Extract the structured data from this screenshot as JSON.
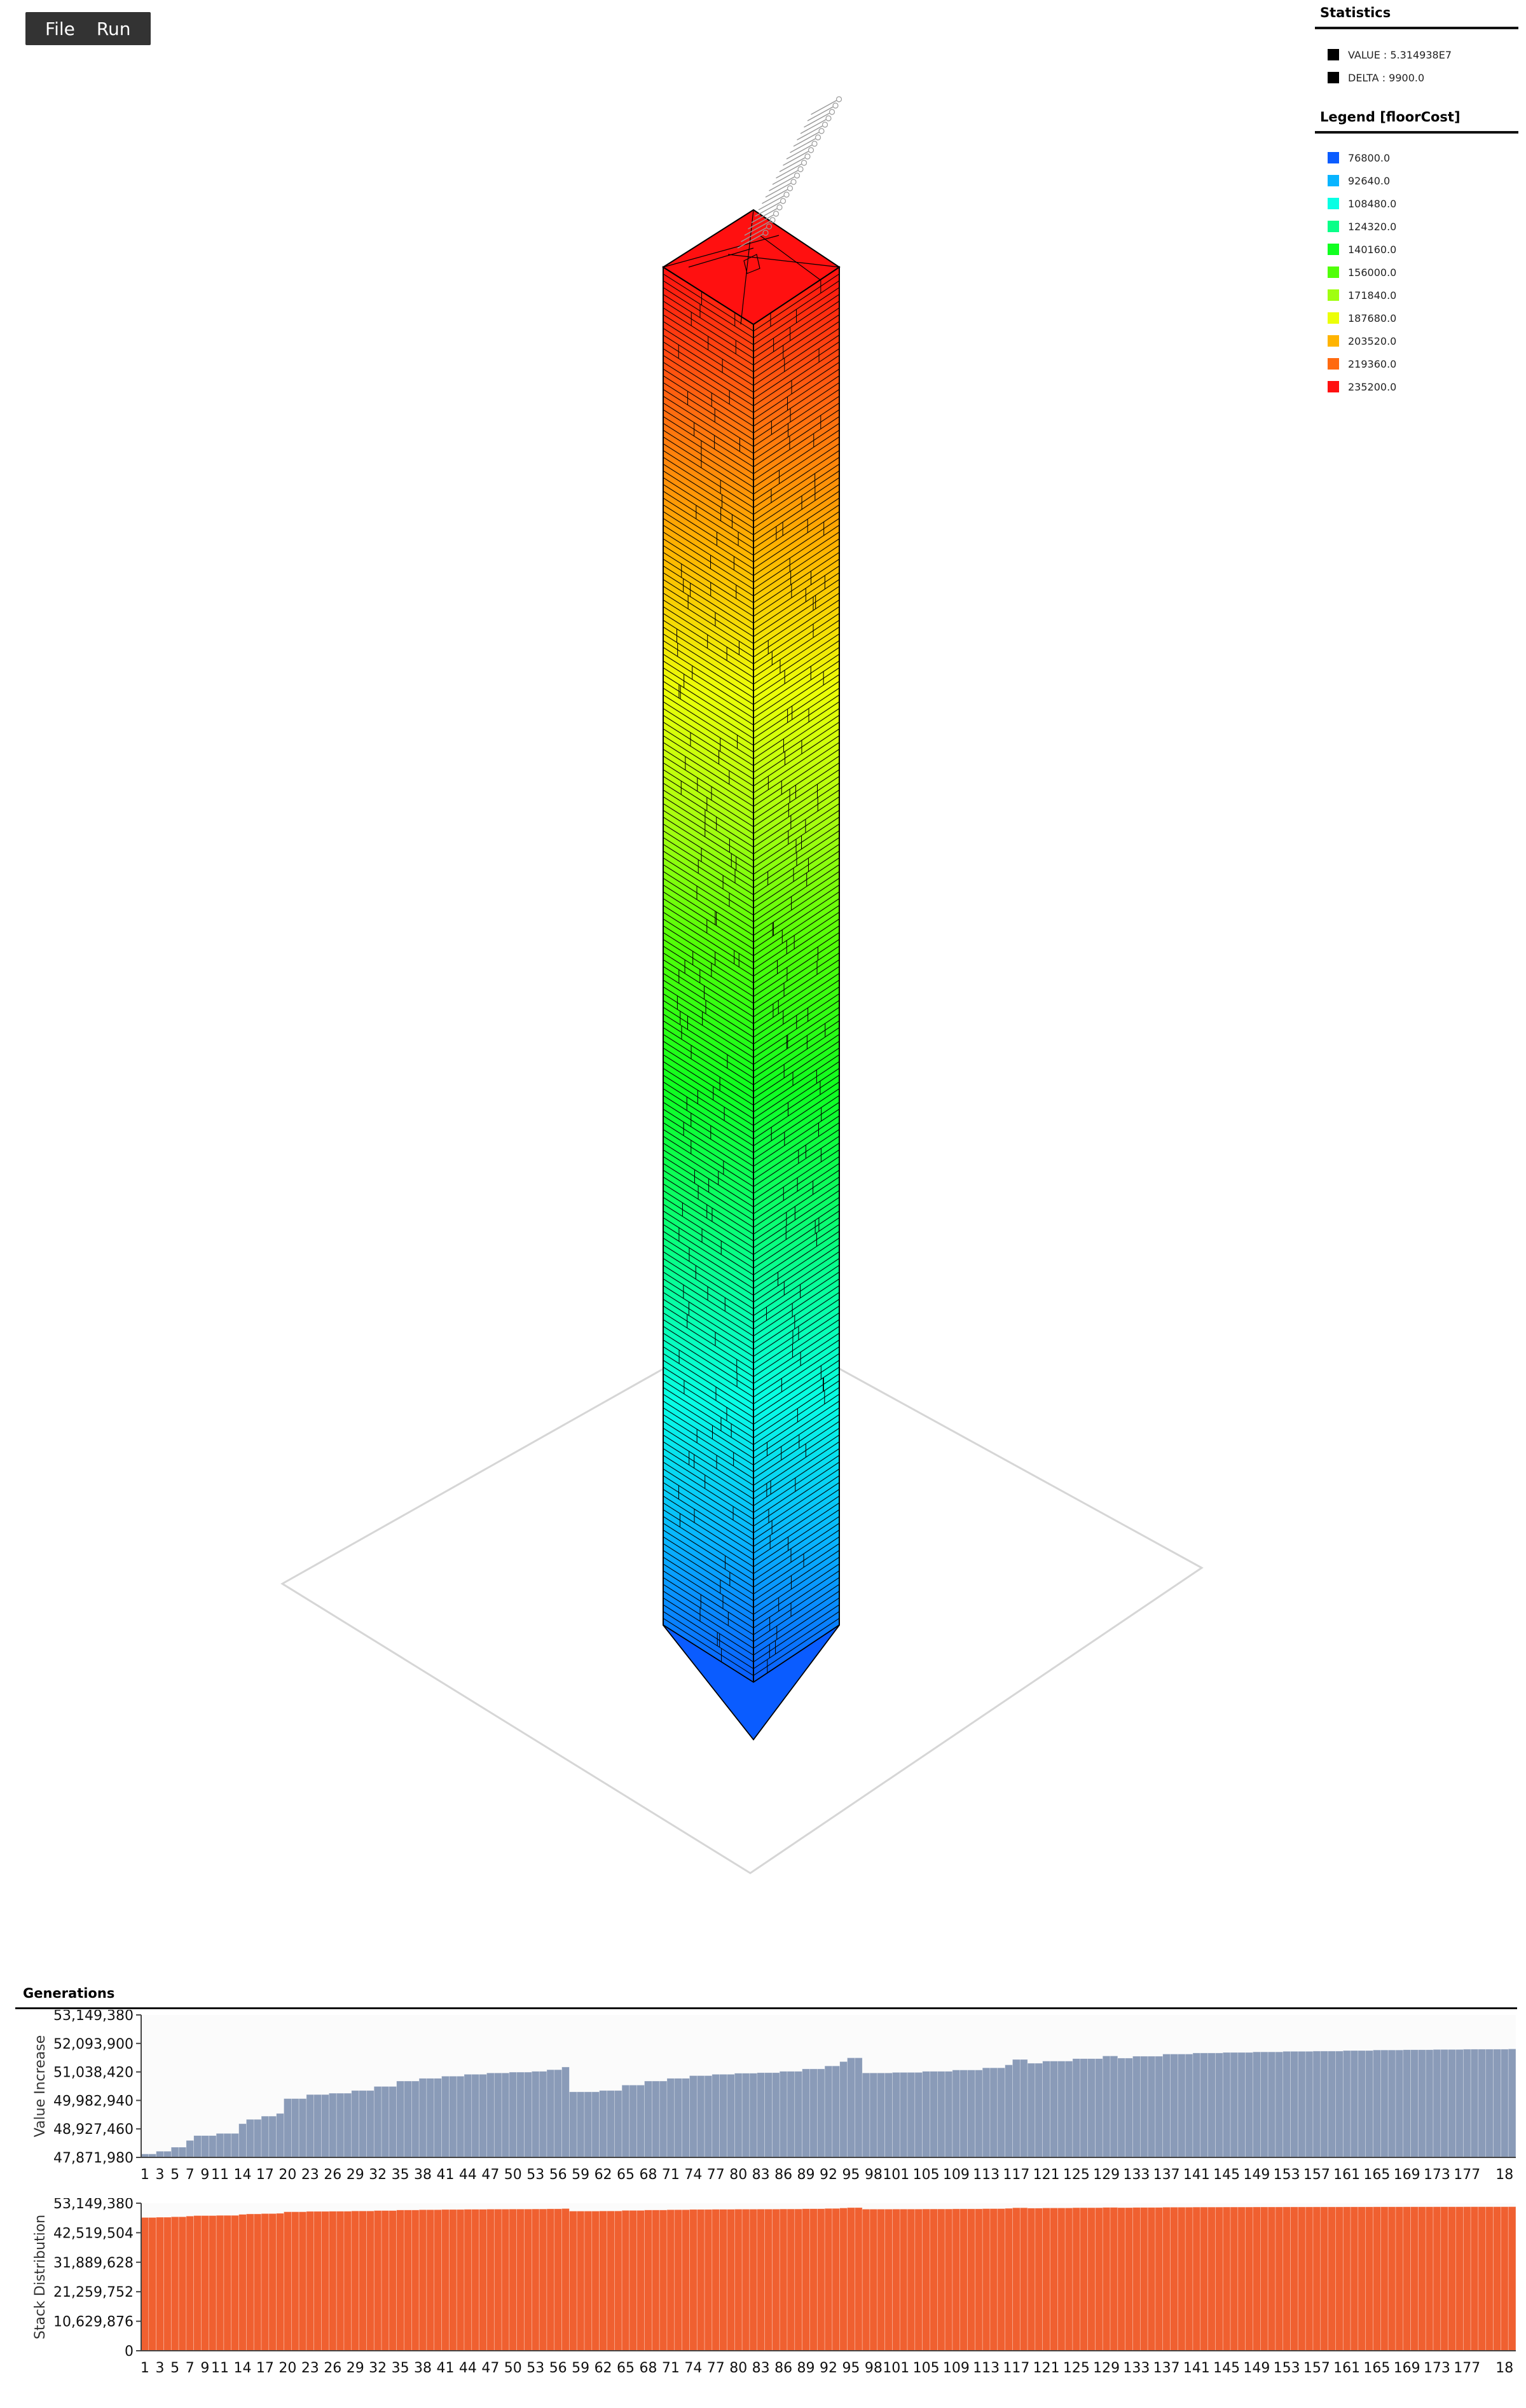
{
  "menu": {
    "items": [
      "File",
      "Run"
    ]
  },
  "statistics": {
    "title": "Statistics",
    "rows": [
      {
        "label": "VALUE : 5.314938E7",
        "color": "#000000"
      },
      {
        "label": "DELTA : 9900.0",
        "color": "#000000"
      }
    ]
  },
  "legend": {
    "title": "Legend [floorCost]",
    "items": [
      {
        "label": "76800.0",
        "color": "#0a5cff"
      },
      {
        "label": "92640.0",
        "color": "#08b4ff"
      },
      {
        "label": "108480.0",
        "color": "#08ffe4"
      },
      {
        "label": "124320.0",
        "color": "#08ff88"
      },
      {
        "label": "140160.0",
        "color": "#10ff20"
      },
      {
        "label": "156000.0",
        "color": "#50ff08"
      },
      {
        "label": "171840.0",
        "color": "#a0ff10"
      },
      {
        "label": "187680.0",
        "color": "#ecff08"
      },
      {
        "label": "203520.0",
        "color": "#ffb400"
      },
      {
        "label": "219360.0",
        "color": "#ff6a10"
      },
      {
        "label": "235200.0",
        "color": "#ff1010"
      }
    ]
  },
  "generations": {
    "title": "Generations"
  },
  "chart_data": [
    {
      "type": "bar",
      "ylabel": "Value Increase",
      "color": "#8a9bb8",
      "yticks": [
        "47,871,980",
        "48,927,460",
        "49,982,940",
        "51,038,420",
        "52,093,900",
        "53,149,380"
      ],
      "ylim": [
        47871980,
        53149380
      ],
      "x_first": 1,
      "x_last": 183,
      "xticks": [
        "1",
        "3",
        "5",
        "7",
        "9",
        "11",
        "14",
        "17",
        "20",
        "23",
        "26",
        "29",
        "32",
        "35",
        "38",
        "41",
        "44",
        "47",
        "50",
        "53",
        "56",
        "59",
        "62",
        "65",
        "68",
        "71",
        "74",
        "77",
        "80",
        "83",
        "86",
        "89",
        "92",
        "95",
        "98",
        "101",
        "105",
        "109",
        "113",
        "117",
        "121",
        "125",
        "129",
        "133",
        "137",
        "141",
        "145",
        "149",
        "153",
        "157",
        "161",
        "165",
        "169",
        "173",
        "177",
        "18"
      ],
      "segments": [
        [
          1,
          48000000
        ],
        [
          3,
          48100000
        ],
        [
          5,
          48250000
        ],
        [
          7,
          48500000
        ],
        [
          8,
          48680000
        ],
        [
          11,
          48760000
        ],
        [
          14,
          49120000
        ],
        [
          15,
          49280000
        ],
        [
          17,
          49400000
        ],
        [
          19,
          49500000
        ],
        [
          20,
          50050000
        ],
        [
          23,
          50200000
        ],
        [
          26,
          50250000
        ],
        [
          29,
          50350000
        ],
        [
          32,
          50500000
        ],
        [
          35,
          50700000
        ],
        [
          38,
          50800000
        ],
        [
          41,
          50880000
        ],
        [
          44,
          50950000
        ],
        [
          47,
          51000000
        ],
        [
          50,
          51030000
        ],
        [
          53,
          51060000
        ],
        [
          55,
          51120000
        ],
        [
          57,
          51220000
        ],
        [
          58,
          50300000
        ],
        [
          62,
          50350000
        ],
        [
          65,
          50550000
        ],
        [
          68,
          50700000
        ],
        [
          71,
          50800000
        ],
        [
          74,
          50900000
        ],
        [
          77,
          50950000
        ],
        [
          80,
          50990000
        ],
        [
          83,
          51010000
        ],
        [
          86,
          51060000
        ],
        [
          89,
          51150000
        ],
        [
          92,
          51260000
        ],
        [
          94,
          51420000
        ],
        [
          95,
          51560000
        ],
        [
          97,
          51000000
        ],
        [
          101,
          51020000
        ],
        [
          105,
          51060000
        ],
        [
          109,
          51110000
        ],
        [
          113,
          51190000
        ],
        [
          116,
          51300000
        ],
        [
          117,
          51500000
        ],
        [
          119,
          51360000
        ],
        [
          121,
          51440000
        ],
        [
          125,
          51530000
        ],
        [
          129,
          51630000
        ],
        [
          131,
          51550000
        ],
        [
          133,
          51620000
        ],
        [
          137,
          51700000
        ],
        [
          141,
          51740000
        ],
        [
          145,
          51760000
        ],
        [
          149,
          51780000
        ],
        [
          153,
          51800000
        ],
        [
          157,
          51810000
        ],
        [
          161,
          51830000
        ],
        [
          165,
          51850000
        ],
        [
          169,
          51860000
        ],
        [
          173,
          51870000
        ],
        [
          177,
          51880000
        ],
        [
          183,
          51890000
        ]
      ]
    },
    {
      "type": "bar",
      "ylabel": "Stack Distribution",
      "color": "#f06030",
      "yticks": [
        "0",
        "10,629,876",
        "21,259,752",
        "31,889,628",
        "42,519,504",
        "53,149,380"
      ],
      "ylim": [
        0,
        53149380
      ],
      "x_first": 1,
      "x_last": 183,
      "xticks": [
        "1",
        "3",
        "5",
        "7",
        "9",
        "11",
        "14",
        "17",
        "20",
        "23",
        "26",
        "29",
        "32",
        "35",
        "38",
        "41",
        "44",
        "47",
        "50",
        "53",
        "56",
        "59",
        "62",
        "65",
        "68",
        "71",
        "74",
        "77",
        "80",
        "83",
        "86",
        "89",
        "92",
        "95",
        "98",
        "101",
        "105",
        "109",
        "113",
        "117",
        "121",
        "125",
        "129",
        "133",
        "137",
        "141",
        "145",
        "149",
        "153",
        "157",
        "161",
        "165",
        "169",
        "173",
        "177",
        "18"
      ],
      "same_as_values": true
    }
  ]
}
